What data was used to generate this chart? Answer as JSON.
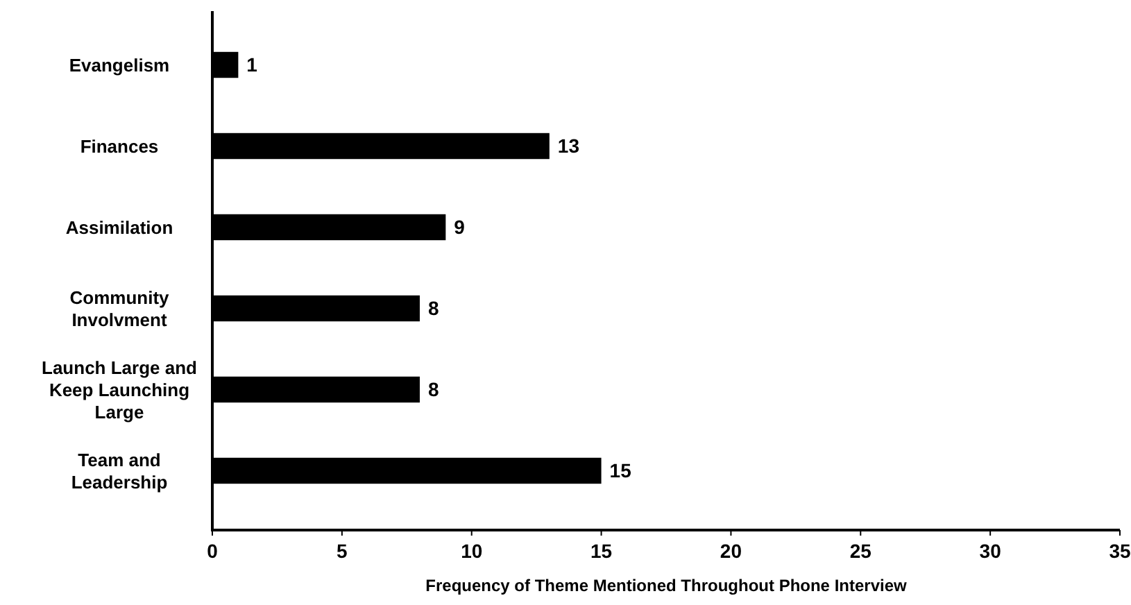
{
  "chart_data": {
    "type": "bar",
    "orientation": "horizontal",
    "xlabel": "Frequency of Theme Mentioned Throughout Phone Interview",
    "categories": [
      "Evangelism",
      "Finances",
      "Assimilation",
      "Community Involvment",
      "Launch Large and Keep Launching Large",
      "Team and Leadership"
    ],
    "values": [
      1,
      13,
      9,
      8,
      8,
      15
    ],
    "color": "#000000",
    "xlim": [
      0,
      35
    ],
    "xticks": [
      0,
      5,
      10,
      15,
      20,
      25,
      30,
      35
    ],
    "data_labels": true,
    "grid": false
  }
}
